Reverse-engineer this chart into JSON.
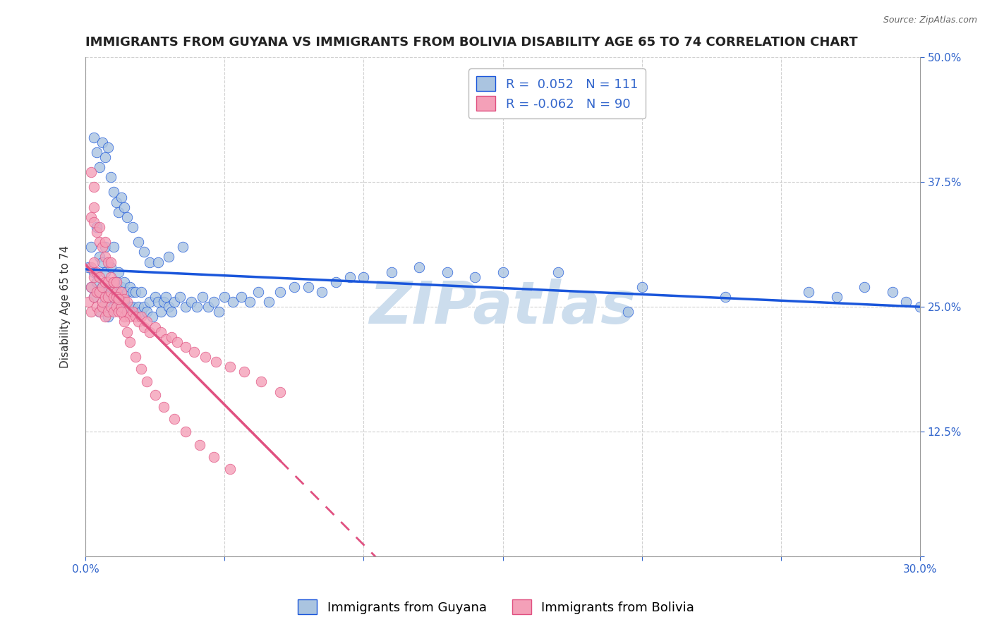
{
  "title": "IMMIGRANTS FROM GUYANA VS IMMIGRANTS FROM BOLIVIA DISABILITY AGE 65 TO 74 CORRELATION CHART",
  "source": "Source: ZipAtlas.com",
  "ylabel": "Disability Age 65 to 74",
  "xlim": [
    0.0,
    0.3
  ],
  "ylim": [
    0.0,
    0.5
  ],
  "xticks": [
    0.0,
    0.05,
    0.1,
    0.15,
    0.2,
    0.25,
    0.3
  ],
  "yticks": [
    0.0,
    0.125,
    0.25,
    0.375,
    0.5
  ],
  "xticklabels": [
    "0.0%",
    "",
    "",
    "",
    "",
    "",
    "30.0%"
  ],
  "yticklabels": [
    "",
    "12.5%",
    "25.0%",
    "37.5%",
    "50.0%"
  ],
  "R_guyana": 0.052,
  "N_guyana": 111,
  "R_bolivia": -0.062,
  "N_bolivia": 90,
  "color_guyana": "#aac4e0",
  "color_bolivia": "#f4a0b8",
  "line_color_guyana": "#1a56db",
  "line_color_bolivia": "#e05080",
  "watermark": "ZIPatlas",
  "watermark_color": "#ccdded",
  "background_color": "#ffffff",
  "grid_color": "#cccccc",
  "title_fontsize": 13,
  "axis_label_fontsize": 11,
  "tick_label_fontsize": 11,
  "legend_fontsize": 13,
  "guyana_x": [
    0.001,
    0.002,
    0.002,
    0.003,
    0.003,
    0.004,
    0.004,
    0.005,
    0.005,
    0.005,
    0.006,
    0.006,
    0.006,
    0.007,
    0.007,
    0.007,
    0.008,
    0.008,
    0.009,
    0.009,
    0.01,
    0.01,
    0.01,
    0.011,
    0.011,
    0.012,
    0.012,
    0.013,
    0.013,
    0.014,
    0.014,
    0.015,
    0.015,
    0.016,
    0.016,
    0.017,
    0.017,
    0.018,
    0.018,
    0.019,
    0.02,
    0.02,
    0.021,
    0.022,
    0.023,
    0.024,
    0.025,
    0.026,
    0.027,
    0.028,
    0.029,
    0.03,
    0.031,
    0.032,
    0.034,
    0.036,
    0.038,
    0.04,
    0.042,
    0.044,
    0.046,
    0.048,
    0.05,
    0.053,
    0.056,
    0.059,
    0.062,
    0.066,
    0.07,
    0.075,
    0.08,
    0.085,
    0.09,
    0.095,
    0.1,
    0.11,
    0.12,
    0.13,
    0.14,
    0.15,
    0.003,
    0.004,
    0.005,
    0.006,
    0.007,
    0.008,
    0.009,
    0.01,
    0.011,
    0.012,
    0.013,
    0.014,
    0.015,
    0.017,
    0.019,
    0.021,
    0.023,
    0.026,
    0.03,
    0.035,
    0.17,
    0.2,
    0.23,
    0.26,
    0.27,
    0.28,
    0.29,
    0.295,
    0.3,
    0.305,
    0.195
  ],
  "guyana_y": [
    0.29,
    0.27,
    0.31,
    0.26,
    0.285,
    0.275,
    0.33,
    0.245,
    0.265,
    0.3,
    0.25,
    0.27,
    0.295,
    0.255,
    0.285,
    0.31,
    0.24,
    0.265,
    0.27,
    0.29,
    0.25,
    0.27,
    0.31,
    0.255,
    0.275,
    0.26,
    0.285,
    0.25,
    0.27,
    0.255,
    0.275,
    0.245,
    0.265,
    0.25,
    0.27,
    0.25,
    0.265,
    0.245,
    0.265,
    0.25,
    0.245,
    0.265,
    0.25,
    0.245,
    0.255,
    0.24,
    0.26,
    0.255,
    0.245,
    0.255,
    0.26,
    0.25,
    0.245,
    0.255,
    0.26,
    0.25,
    0.255,
    0.25,
    0.26,
    0.25,
    0.255,
    0.245,
    0.26,
    0.255,
    0.26,
    0.255,
    0.265,
    0.255,
    0.265,
    0.27,
    0.27,
    0.265,
    0.275,
    0.28,
    0.28,
    0.285,
    0.29,
    0.285,
    0.28,
    0.285,
    0.42,
    0.405,
    0.39,
    0.415,
    0.4,
    0.41,
    0.38,
    0.365,
    0.355,
    0.345,
    0.36,
    0.35,
    0.34,
    0.33,
    0.315,
    0.305,
    0.295,
    0.295,
    0.3,
    0.31,
    0.285,
    0.27,
    0.26,
    0.265,
    0.26,
    0.27,
    0.265,
    0.255,
    0.25,
    0.255,
    0.245
  ],
  "bolivia_x": [
    0.001,
    0.002,
    0.002,
    0.002,
    0.003,
    0.003,
    0.003,
    0.004,
    0.004,
    0.004,
    0.005,
    0.005,
    0.005,
    0.006,
    0.006,
    0.006,
    0.007,
    0.007,
    0.007,
    0.008,
    0.008,
    0.008,
    0.009,
    0.009,
    0.01,
    0.01,
    0.01,
    0.011,
    0.011,
    0.012,
    0.012,
    0.013,
    0.013,
    0.014,
    0.014,
    0.015,
    0.015,
    0.016,
    0.017,
    0.018,
    0.019,
    0.02,
    0.021,
    0.022,
    0.023,
    0.025,
    0.027,
    0.029,
    0.031,
    0.033,
    0.036,
    0.039,
    0.043,
    0.047,
    0.052,
    0.057,
    0.063,
    0.07,
    0.002,
    0.003,
    0.003,
    0.004,
    0.005,
    0.005,
    0.006,
    0.007,
    0.007,
    0.008,
    0.009,
    0.009,
    0.01,
    0.011,
    0.011,
    0.012,
    0.013,
    0.014,
    0.015,
    0.016,
    0.018,
    0.02,
    0.022,
    0.025,
    0.028,
    0.032,
    0.036,
    0.041,
    0.046,
    0.052,
    0.002,
    0.003
  ],
  "bolivia_y": [
    0.255,
    0.27,
    0.245,
    0.29,
    0.26,
    0.28,
    0.295,
    0.25,
    0.265,
    0.285,
    0.245,
    0.265,
    0.28,
    0.25,
    0.27,
    0.255,
    0.24,
    0.26,
    0.275,
    0.245,
    0.26,
    0.275,
    0.25,
    0.265,
    0.245,
    0.26,
    0.275,
    0.25,
    0.265,
    0.245,
    0.26,
    0.25,
    0.265,
    0.24,
    0.258,
    0.245,
    0.255,
    0.24,
    0.245,
    0.24,
    0.235,
    0.24,
    0.23,
    0.235,
    0.225,
    0.23,
    0.225,
    0.218,
    0.22,
    0.215,
    0.21,
    0.205,
    0.2,
    0.195,
    0.19,
    0.185,
    0.175,
    0.165,
    0.34,
    0.335,
    0.35,
    0.325,
    0.315,
    0.33,
    0.31,
    0.3,
    0.315,
    0.295,
    0.28,
    0.295,
    0.275,
    0.26,
    0.275,
    0.258,
    0.245,
    0.235,
    0.225,
    0.215,
    0.2,
    0.188,
    0.175,
    0.162,
    0.15,
    0.138,
    0.125,
    0.112,
    0.1,
    0.088,
    0.385,
    0.37
  ]
}
